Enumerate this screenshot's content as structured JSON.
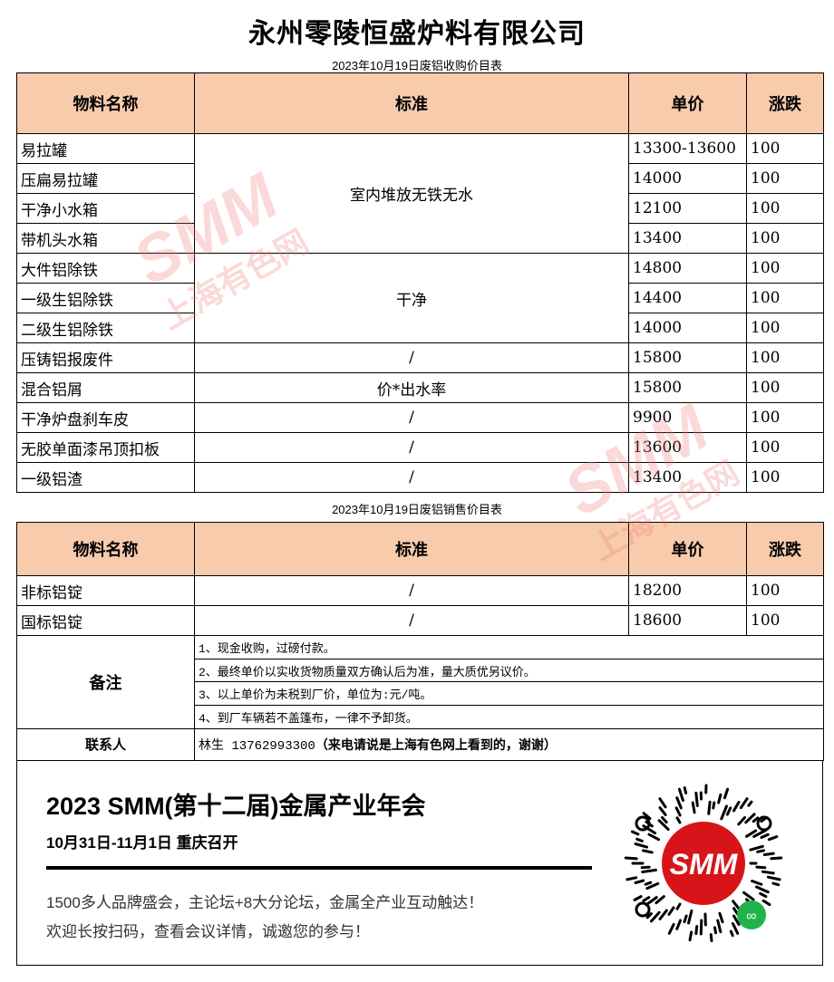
{
  "title": "永州零陵恒盛炉料有限公司",
  "buy": {
    "subtitle": "2023年10月19日废铝收购价目表",
    "headers": [
      "物料名称",
      "标准",
      "单价",
      "涨跌"
    ],
    "rows": [
      [
        "易拉罐",
        "室内堆放无铁无水",
        "13300-13600",
        "100"
      ],
      [
        "压扁易拉罐",
        "",
        "14000",
        "100"
      ],
      [
        "干净小水箱",
        "",
        "12100",
        "100"
      ],
      [
        "带机头水箱",
        "",
        "13400",
        "100"
      ],
      [
        "大件铝除铁",
        "干净",
        "14800",
        "100"
      ],
      [
        "一级生铝除铁",
        "",
        "14400",
        "100"
      ],
      [
        "二级生铝除铁",
        "",
        "14000",
        "100"
      ],
      [
        "压铸铝报废件",
        "/",
        "15800",
        "100"
      ],
      [
        "混合铝屑",
        "价*出水率",
        "15800",
        "100"
      ],
      [
        "干净炉盘刹车皮",
        "/",
        "9900",
        "100"
      ],
      [
        "无胶单面漆吊顶扣板",
        "/",
        "13600",
        "100"
      ],
      [
        "一级铝渣",
        "/",
        "13400",
        "100"
      ]
    ]
  },
  "sell": {
    "subtitle": "2023年10月19日废铝销售价目表",
    "headers": [
      "物料名称",
      "标准",
      "单价",
      "涨跌"
    ],
    "rows": [
      [
        "非标铝锭",
        "/",
        "18200",
        "100"
      ],
      [
        "国标铝锭",
        "/",
        "18600",
        "100"
      ]
    ],
    "notes_label": "备注",
    "notes": [
      "1、现金收购，过磅付款。",
      "2、最终单价以实收货物质量双方确认后为准，量大质优另议价。",
      "3、以上单价为未税到厂价，单位为:元/吨。",
      "4、到厂车辆若不盖篷布，一律不予卸货。"
    ],
    "contact_label": "联系人",
    "contact_name": "林生 13762993300",
    "contact_note": "（来电请说是上海有色网上看到的，谢谢）"
  },
  "banner": {
    "headline": "2023 SMM(第十二届)金属产业年会",
    "date": "10月31日-11月1日  重庆召开",
    "line1": "1500多人品牌盛会，主论坛+8大分论坛，金属全产业互动触达！",
    "line2": "欢迎长按扫码，查看会议详情，诚邀您的参与！",
    "qr_logo": "SMM"
  },
  "watermark": {
    "logo": "SMM",
    "text": "上海有色网"
  },
  "colors": {
    "header_bg": "#f8cbad",
    "brand_red": "#d7141a",
    "wechat_green": "#20b34a"
  }
}
